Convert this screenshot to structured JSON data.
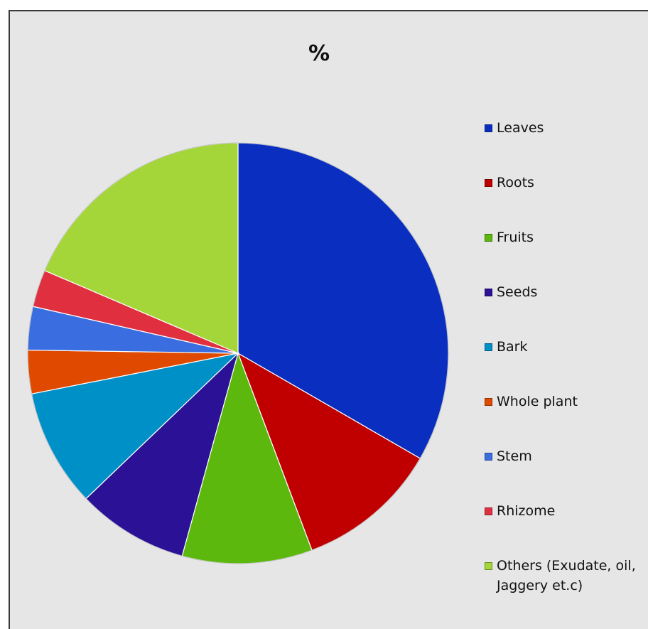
{
  "chart_data": {
    "type": "pie",
    "title": "%",
    "legend": "right",
    "slices": [
      {
        "label": "Leaves",
        "value": 35,
        "color": "#0a2fc0"
      },
      {
        "label": "Roots",
        "value": 11.5,
        "color": "#c00000"
      },
      {
        "label": "Fruits",
        "value": 10.5,
        "color": "#5cb80c"
      },
      {
        "label": "Seeds",
        "value": 9,
        "color": "#2a1196"
      },
      {
        "label": "Bark",
        "value": 9.5,
        "color": "#0090c8"
      },
      {
        "label": "Whole plant",
        "value": 3.5,
        "color": "#e04a00"
      },
      {
        "label": "Stem",
        "value": 3.5,
        "color": "#3a6ee0"
      },
      {
        "label": "Rhizome",
        "value": 3,
        "color": "#e03040"
      },
      {
        "label": "Others (Exudate, oil, Jaggery et.c)",
        "value": 19.5,
        "color": "#a4d63a"
      }
    ]
  }
}
